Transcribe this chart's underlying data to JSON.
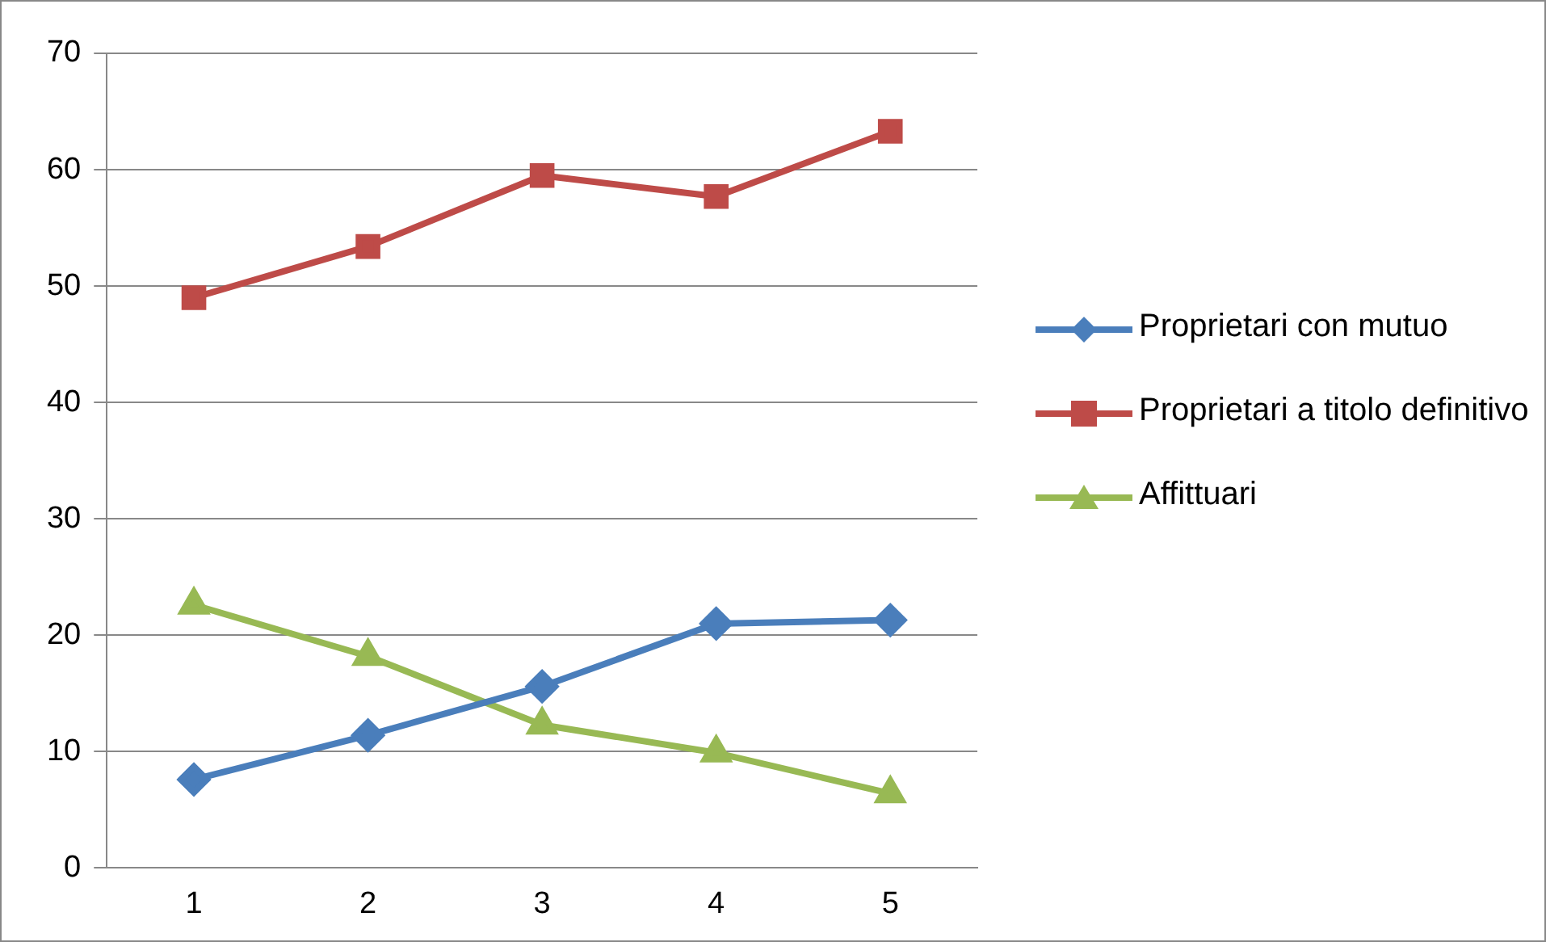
{
  "chart_data": {
    "type": "line",
    "categories": [
      "1",
      "2",
      "3",
      "4",
      "5"
    ],
    "ylim": [
      0,
      70
    ],
    "yticks": [
      0,
      10,
      20,
      30,
      40,
      50,
      60,
      70
    ],
    "grid": "y",
    "legend": "right",
    "series": [
      {
        "name": "Proprietari con mutuo",
        "color": "#4a7ebb",
        "marker": "diamond",
        "values": [
          7.6,
          11.4,
          15.6,
          21.0,
          21.3
        ]
      },
      {
        "name": "Proprietari a titolo definitivo",
        "color": "#be4b48",
        "marker": "square",
        "values": [
          49,
          53.4,
          59.5,
          57.7,
          63.3
        ]
      },
      {
        "name": "Affittuari",
        "color": "#98b954",
        "marker": "triangle",
        "values": [
          22.6,
          18.2,
          12.3,
          9.9,
          6.4
        ]
      }
    ]
  }
}
